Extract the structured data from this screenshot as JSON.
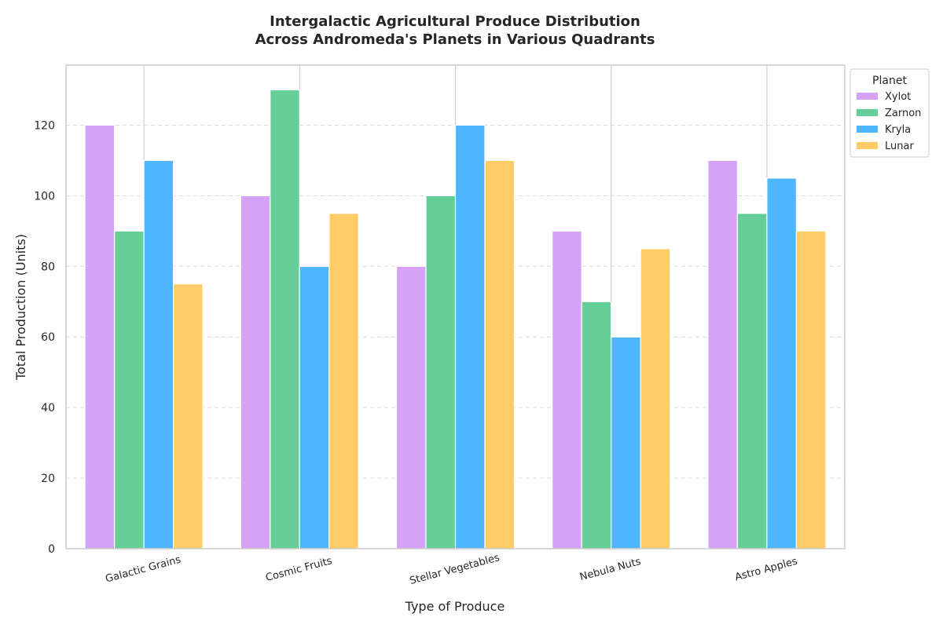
{
  "chart_data": {
    "type": "bar",
    "title_lines": [
      "Intergalactic Agricultural Produce Distribution",
      "Across Andromeda's Planets in Various Quadrants"
    ],
    "xlabel": "Type of Produce",
    "ylabel": "Total Production (Units)",
    "categories": [
      "Galactic Grains",
      "Cosmic Fruits",
      "Stellar Vegetables",
      "Nebula Nuts",
      "Astro Apples"
    ],
    "series": [
      {
        "name": "Xylot",
        "color": "#d6a2f7",
        "values": [
          120,
          100,
          80,
          90,
          110
        ]
      },
      {
        "name": "Zarnon",
        "color": "#66cf98",
        "values": [
          90,
          130,
          100,
          70,
          95
        ]
      },
      {
        "name": "Kryla",
        "color": "#4db6fe",
        "values": [
          110,
          80,
          120,
          60,
          105
        ]
      },
      {
        "name": "Lunar",
        "color": "#ffcc66",
        "values": [
          75,
          95,
          110,
          85,
          90
        ]
      }
    ],
    "ylim": [
      0,
      137
    ],
    "yticks": [
      0,
      20,
      40,
      60,
      80,
      100,
      120
    ],
    "grid": "y-dashed",
    "legend_title": "Planet",
    "legend_position": "top-right-outside"
  }
}
